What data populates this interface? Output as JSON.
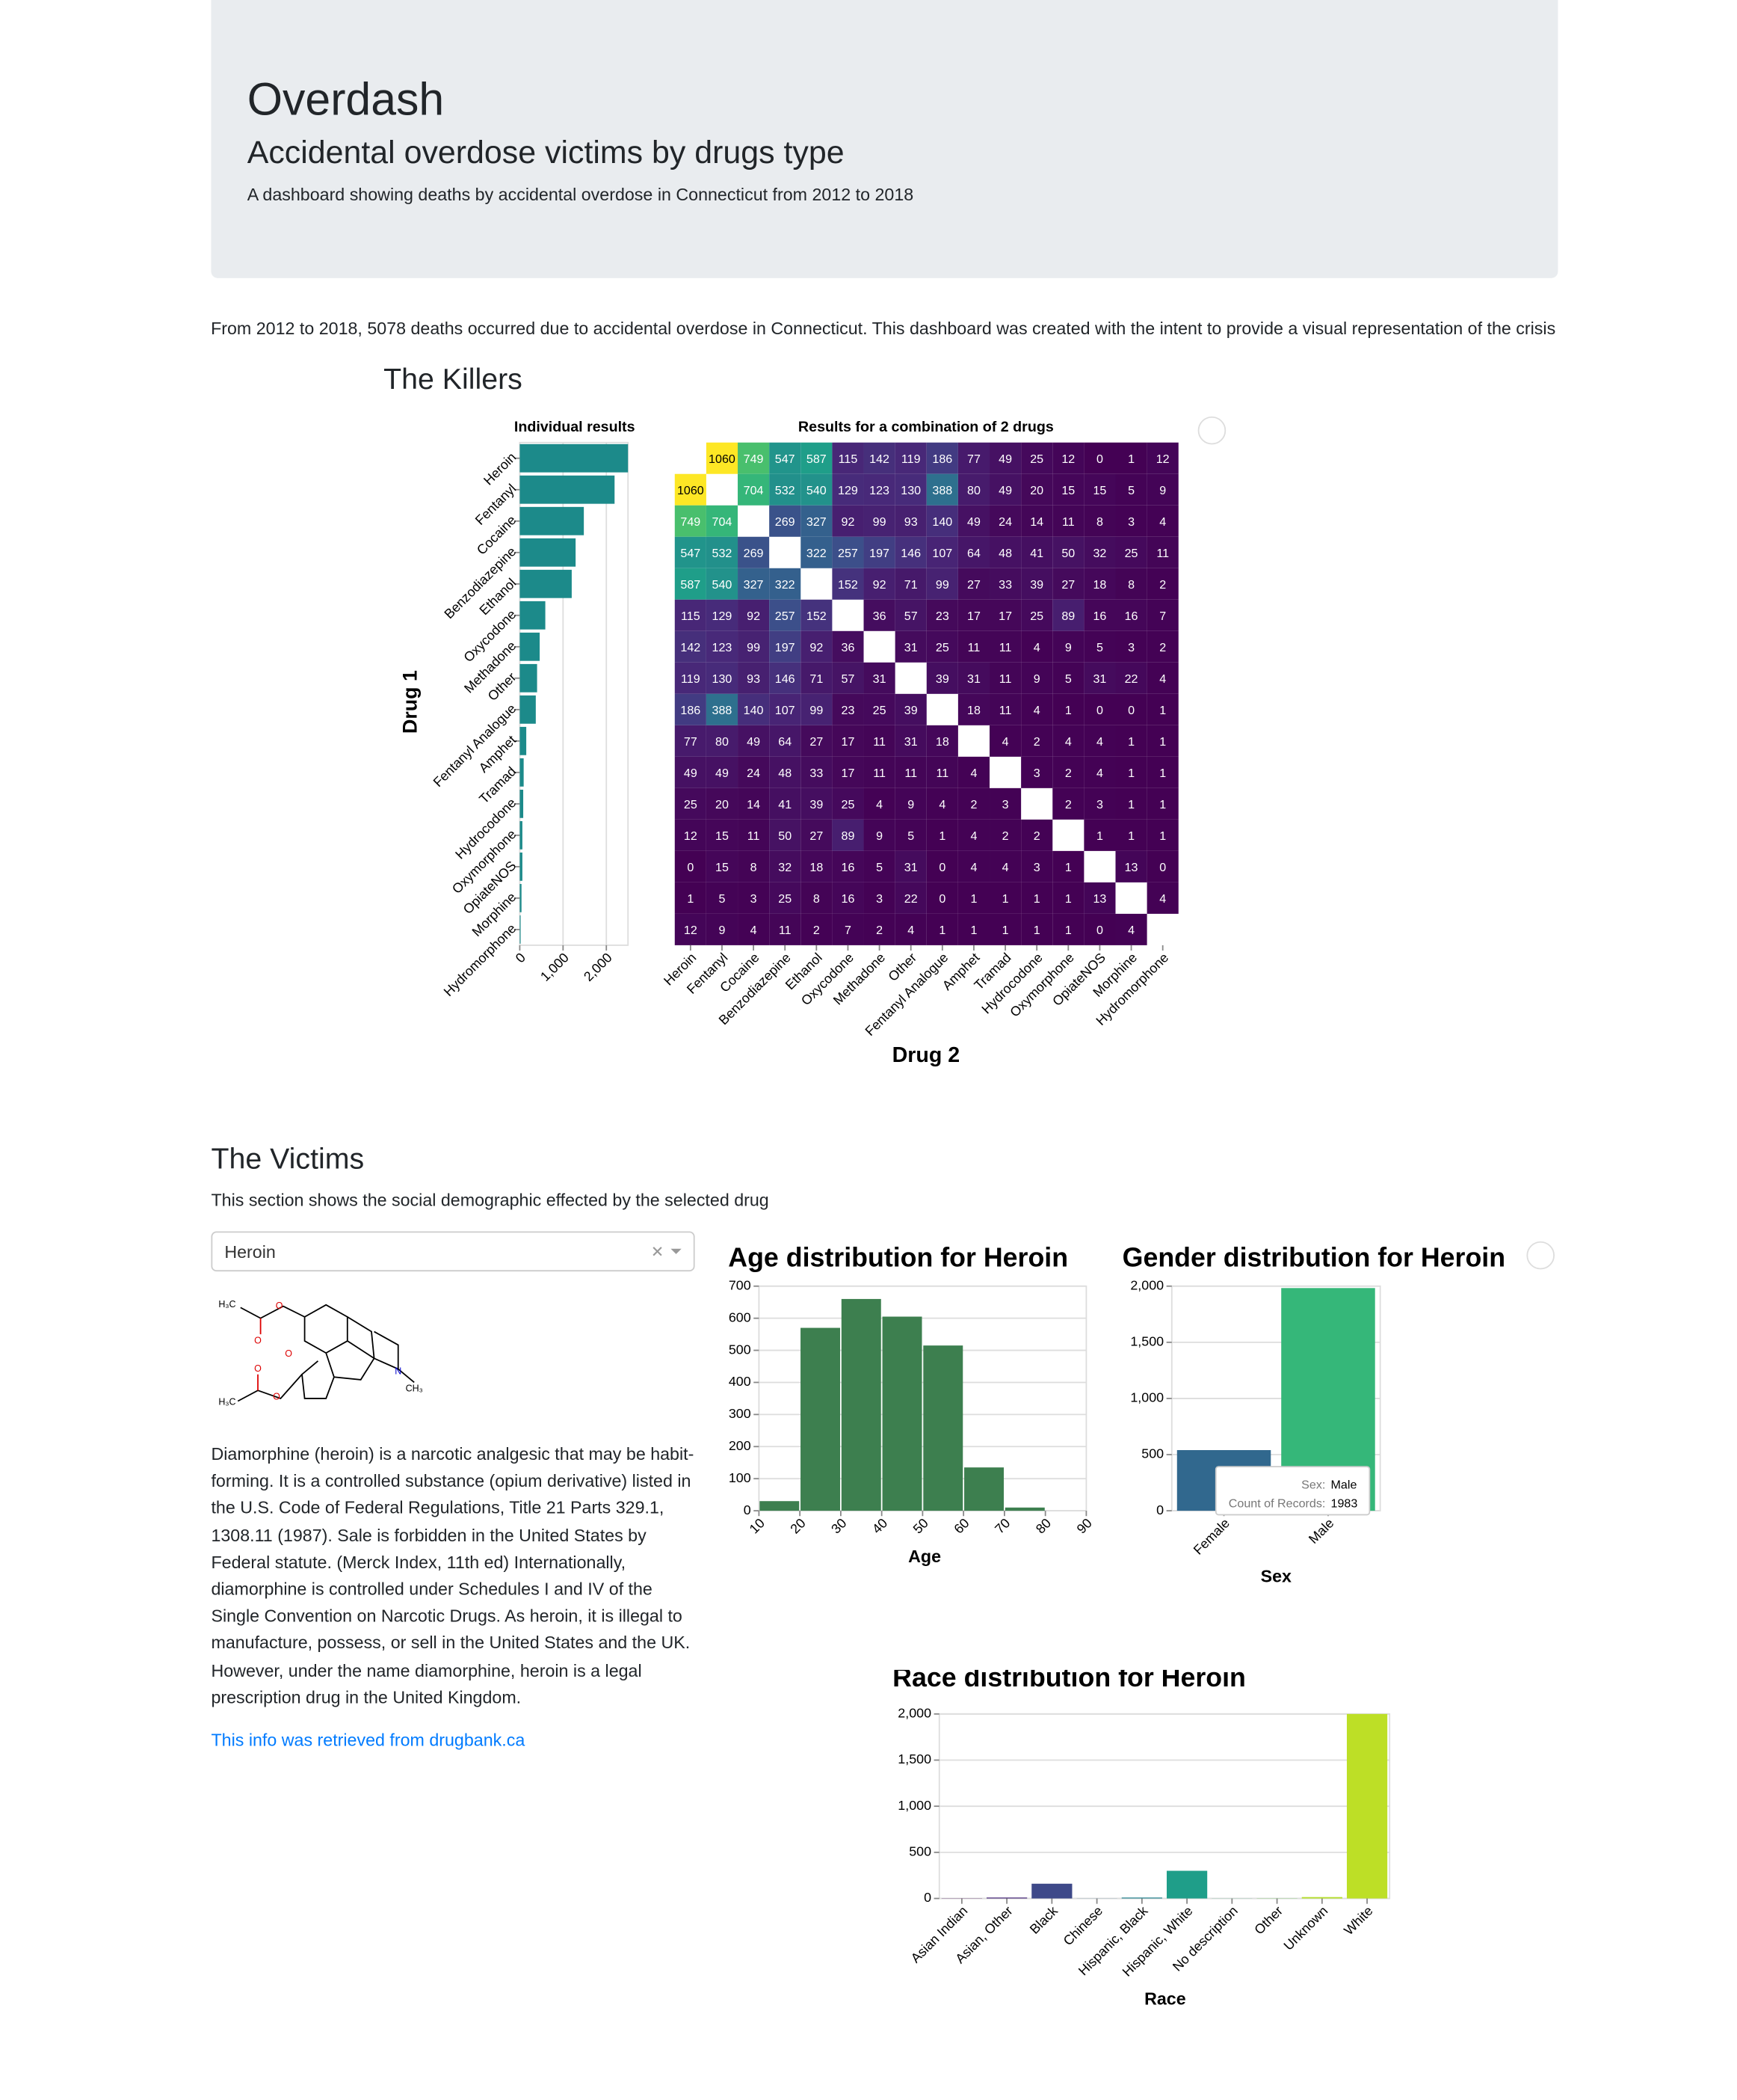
{
  "header": {
    "title": "Overdash",
    "subtitle": "Accidental overdose victims by drugs type",
    "description": "A dashboard showing deaths by accidental overdose in Connecticut from 2012 to 2018"
  },
  "intro": "From 2012 to 2018, 5078 deaths occurred due to accidental overdose in Connecticut. This dashboard was created with the intent to provide a visual representation of the crisis",
  "killers": {
    "heading": "The Killers"
  },
  "victims": {
    "heading": "The Victims",
    "description": "This section shows the social demographic effected by the selected drug",
    "dropdown": "Heroin",
    "structure_labels": [
      "H₃C",
      "O",
      "O",
      "O",
      "N",
      "CH₃",
      "H₃C",
      "O",
      "O"
    ],
    "drug_text": "Diamorphine (heroin) is a narcotic analgesic that may be habit-forming. It is a controlled substance (opium derivative) listed in the U.S. Code of Federal Regulations, Title 21 Parts 329.1, 1308.11 (1987). Sale is forbidden in the United States by Federal statute. (Merck Index, 11th ed) Internationally, diamorphine is controlled under Schedules I and IV of the Single Convention on Narcotic Drugs. As heroin, it is illegal to manufacture, possess, or sell in the United States and the UK. However, under the name diamorphine, heroin is a legal prescription drug in the United Kingdom.",
    "link": "This info was retrieved from drugbank.ca"
  },
  "chart_data": [
    {
      "type": "bar",
      "orientation": "horizontal",
      "title": "Individual results",
      "y_label": "Drug 1",
      "categories": [
        "Heroin",
        "Fentanyl",
        "Cocaine",
        "Benzodiazepine",
        "Ethanol",
        "Oxycodone",
        "Methadone",
        "Other",
        "Fentanyl Analogue",
        "Amphet",
        "Tramad",
        "Hydrocodone",
        "Oxymorphone",
        "OpiateNOS",
        "Morphine",
        "Hydromorphone"
      ],
      "values": [
        2500,
        2190,
        1480,
        1290,
        1200,
        590,
        460,
        400,
        370,
        150,
        90,
        80,
        60,
        60,
        40,
        20
      ],
      "color": "#1c8a8a",
      "xlim": [
        0,
        2500
      ],
      "xticks": [
        0,
        {
          "value": 1000,
          "label": "1,000"
        },
        {
          "value": 2000,
          "label": "2,000"
        }
      ],
      "grid": true
    },
    {
      "type": "heatmap",
      "title": "Results for a combination of 2 drugs",
      "x_label": "Drug 2",
      "categories": [
        "Heroin",
        "Fentanyl",
        "Cocaine",
        "Benzodiazepine",
        "Ethanol",
        "Oxycodone",
        "Methadone",
        "Other",
        "Fentanyl Analogue",
        "Amphet",
        "Tramad",
        "Hydrocodone",
        "Oxymorphone",
        "OpiateNOS",
        "Morphine",
        "Hydromorphone"
      ],
      "values": [
        [
          null,
          1060,
          749,
          547,
          587,
          115,
          142,
          119,
          186,
          77,
          49,
          25,
          12,
          0,
          1,
          12
        ],
        [
          1060,
          null,
          704,
          532,
          540,
          129,
          123,
          130,
          388,
          80,
          49,
          20,
          15,
          15,
          5,
          9
        ],
        [
          749,
          704,
          null,
          269,
          327,
          92,
          99,
          93,
          140,
          49,
          24,
          14,
          11,
          8,
          3,
          4
        ],
        [
          547,
          532,
          269,
          null,
          322,
          257,
          197,
          146,
          107,
          64,
          48,
          41,
          50,
          32,
          25,
          11
        ],
        [
          587,
          540,
          327,
          322,
          null,
          152,
          92,
          71,
          99,
          27,
          33,
          39,
          27,
          18,
          8,
          2
        ],
        [
          115,
          129,
          92,
          257,
          152,
          null,
          36,
          57,
          23,
          17,
          17,
          25,
          89,
          16,
          16,
          7
        ],
        [
          142,
          123,
          99,
          197,
          92,
          36,
          null,
          31,
          25,
          11,
          11,
          4,
          9,
          5,
          3,
          2
        ],
        [
          119,
          130,
          93,
          146,
          71,
          57,
          31,
          null,
          39,
          31,
          11,
          9,
          5,
          31,
          22,
          4
        ],
        [
          186,
          388,
          140,
          107,
          99,
          23,
          25,
          39,
          null,
          18,
          11,
          4,
          1,
          0,
          0,
          1
        ],
        [
          77,
          80,
          49,
          64,
          27,
          17,
          11,
          31,
          18,
          null,
          4,
          2,
          4,
          4,
          1,
          1
        ],
        [
          49,
          49,
          24,
          48,
          33,
          17,
          11,
          11,
          11,
          4,
          null,
          3,
          2,
          4,
          1,
          1
        ],
        [
          25,
          20,
          14,
          41,
          39,
          25,
          4,
          9,
          4,
          2,
          3,
          null,
          2,
          3,
          1,
          1
        ],
        [
          12,
          15,
          11,
          50,
          27,
          89,
          9,
          5,
          1,
          4,
          2,
          2,
          null,
          1,
          1,
          1
        ],
        [
          0,
          15,
          8,
          32,
          18,
          16,
          5,
          31,
          0,
          4,
          4,
          3,
          1,
          null,
          13,
          0
        ],
        [
          1,
          5,
          3,
          25,
          8,
          16,
          3,
          22,
          0,
          1,
          1,
          1,
          1,
          13,
          null,
          4
        ],
        [
          12,
          9,
          4,
          11,
          2,
          7,
          2,
          4,
          1,
          1,
          1,
          1,
          1,
          0,
          4,
          null
        ]
      ],
      "colorscheme": "viridis",
      "zlim": [
        0,
        1060
      ]
    },
    {
      "type": "histogram",
      "title": "Age distribution for Heroin",
      "x_label": "Age",
      "bins": [
        10,
        20,
        30,
        40,
        50,
        60,
        70,
        80,
        90
      ],
      "values": [
        30,
        570,
        660,
        605,
        515,
        135,
        10,
        0
      ],
      "color": "#3d7f4f",
      "xlim": [
        10,
        90
      ],
      "xticks": [
        10,
        20,
        30,
        40,
        50,
        60,
        70,
        80,
        90
      ],
      "ylim": [
        0,
        700
      ],
      "yticks": [
        0,
        100,
        200,
        300,
        400,
        500,
        600,
        700
      ],
      "grid": true
    },
    {
      "type": "bar",
      "title": "Gender distribution for Heroin",
      "x_label": "Sex",
      "categories": [
        "Female",
        "Male"
      ],
      "values": [
        540,
        1983
      ],
      "colors": [
        "#31688e",
        "#35b779"
      ],
      "ylim": [
        0,
        2000
      ],
      "yticks": [
        0,
        500,
        {
          "value": 1000,
          "label": "1,000"
        },
        {
          "value": 1500,
          "label": "1,500"
        },
        {
          "value": 2000,
          "label": "2,000"
        }
      ],
      "grid": true,
      "tooltip": [
        {
          "key": "Sex:",
          "value": "Male"
        },
        {
          "key": "Count of Records:",
          "value": 1983
        }
      ]
    },
    {
      "type": "bar",
      "title": "Race distribution for Heroin",
      "x_label": "Race",
      "categories": [
        "Asian Indian",
        "Asian, Other",
        "Black",
        "Chinese",
        "Hispanic, Black",
        "Hispanic, White",
        "No description",
        "Other",
        "Unknown",
        "White"
      ],
      "values": [
        2,
        10,
        160,
        1,
        10,
        300,
        1,
        2,
        15,
        2000
      ],
      "colors": [
        "#440154",
        "#482878",
        "#3e4989",
        "#31688e",
        "#26828e",
        "#1f9e89",
        "#35b779",
        "#6ece58",
        "#b5de2b",
        "#bddf26"
      ],
      "ylim": [
        0,
        2000
      ],
      "yticks": [
        0,
        500,
        {
          "value": 1000,
          "label": "1,000"
        },
        {
          "value": 1500,
          "label": "1,500"
        },
        {
          "value": 2000,
          "label": "2,000"
        }
      ],
      "grid": true
    }
  ]
}
